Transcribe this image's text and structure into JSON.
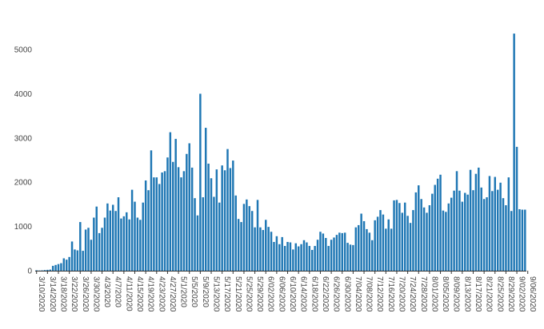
{
  "chart_data": {
    "type": "bar",
    "title": "",
    "xlabel": "",
    "ylabel": "",
    "ylim": [
      0,
      5500
    ],
    "yticks": [
      0,
      1000,
      2000,
      3000,
      4000,
      5000
    ],
    "grid": false,
    "legend": "none",
    "bar_color": "#1f77b4",
    "start_date": "3/10/2020",
    "tick_labels": [
      "3/10/2020",
      "3/14/2020",
      "3/18/2020",
      "3/22/2020",
      "3/26/2020",
      "3/30/2020",
      "4/3/2020",
      "4/7/2020",
      "4/11/2020",
      "4/15/2020",
      "4/19/2020",
      "4/23/2020",
      "4/27/2020",
      "5/1/2020",
      "5/5/2020",
      "5/9/2020",
      "5/13/2020",
      "5/17/2020",
      "5/21/2020",
      "5/25/2020",
      "5/29/2020",
      "6/02/2020",
      "6/06/2020",
      "6/10/2020",
      "6/14/2020",
      "6/18/2020",
      "6/22/2020",
      "6/26/2020",
      "6/30/2020",
      "7/04/2020",
      "7/08/2020",
      "7/12/2020",
      "7/16/2020",
      "7/20/2020",
      "7/24/2020",
      "7/28/2020",
      "8/01/2020",
      "8/05/2020",
      "8/09/2020",
      "8/13/2020",
      "8/17/2020",
      "8/21/2020",
      "8/25/2020",
      "8/29/2020",
      "9/02/2020",
      "9/06/2020"
    ],
    "values": [
      10,
      5,
      8,
      15,
      20,
      25,
      110,
      130,
      150,
      170,
      280,
      250,
      310,
      660,
      480,
      460,
      1100,
      450,
      930,
      970,
      700,
      1200,
      1450,
      850,
      970,
      1200,
      1520,
      1360,
      1490,
      1350,
      1660,
      1180,
      1230,
      1320,
      1160,
      1830,
      1560,
      1200,
      1150,
      1540,
      2040,
      1820,
      2720,
      2110,
      2110,
      1960,
      2220,
      2250,
      2560,
      3130,
      2460,
      2980,
      2340,
      2110,
      2250,
      2640,
      2880,
      2330,
      1640,
      1250,
      4000,
      1660,
      3230,
      2420,
      2090,
      1670,
      2290,
      1540,
      2380,
      2270,
      2750,
      2320,
      2490,
      1700,
      1170,
      1100,
      1510,
      1610,
      1460,
      1350,
      980,
      1600,
      980,
      920,
      1150,
      990,
      880,
      650,
      780,
      600,
      760,
      560,
      650,
      640,
      480,
      620,
      550,
      600,
      690,
      640,
      560,
      470,
      560,
      700,
      880,
      840,
      740,
      560,
      700,
      750,
      810,
      860,
      850,
      860,
      630,
      590,
      580,
      980,
      1030,
      1290,
      1120,
      940,
      860,
      690,
      1140,
      1220,
      1370,
      1270,
      950,
      1160,
      950,
      1590,
      1600,
      1530,
      1310,
      1540,
      1240,
      1080,
      1370,
      1770,
      1930,
      1620,
      1430,
      1310,
      1480,
      1740,
      1940,
      2080,
      2170,
      1360,
      1330,
      1520,
      1650,
      1810,
      2250,
      1810,
      1560,
      1760,
      1720,
      2280,
      1820,
      2190,
      2330,
      1880,
      1620,
      1660,
      2140,
      1800,
      2120,
      1830,
      1990,
      1640,
      1480,
      2110,
      1350,
      5360,
      2800,
      1390,
      1380,
      1380
    ]
  }
}
